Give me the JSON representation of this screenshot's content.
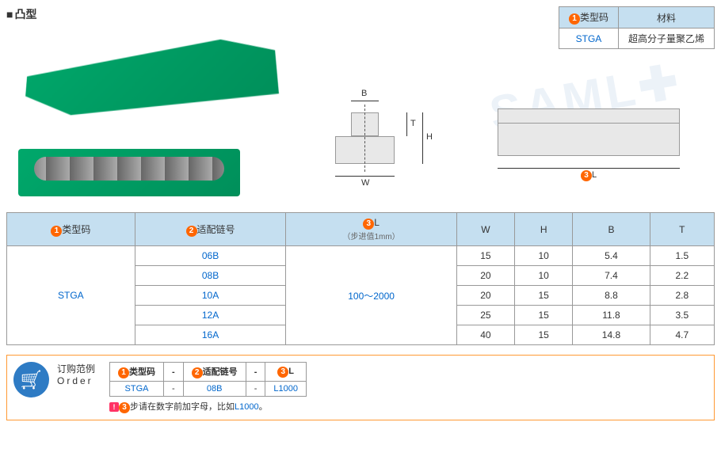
{
  "title": "凸型",
  "material_table": {
    "headers": [
      "类型码",
      "材料"
    ],
    "row": [
      "STGA",
      "超高分子量聚乙烯"
    ]
  },
  "diagram": {
    "labels": {
      "B": "B",
      "W": "W",
      "T": "T",
      "H": "H",
      "L": "L"
    }
  },
  "main_table": {
    "headers": [
      "类型码",
      "适配链号",
      "L",
      "W",
      "H",
      "B",
      "T"
    ],
    "l_subtext": "（步进值1mm）",
    "type_code": "STGA",
    "l_range": "100～2000",
    "rows": [
      {
        "chain": "06B",
        "w": "15",
        "h": "10",
        "b": "5.4",
        "t": "1.5"
      },
      {
        "chain": "08B",
        "w": "20",
        "h": "10",
        "b": "7.4",
        "t": "2.2"
      },
      {
        "chain": "10A",
        "w": "20",
        "h": "15",
        "b": "8.8",
        "t": "2.8"
      },
      {
        "chain": "12A",
        "w": "25",
        "h": "15",
        "b": "11.8",
        "t": "3.5"
      },
      {
        "chain": "16A",
        "w": "40",
        "h": "15",
        "b": "14.8",
        "t": "4.7"
      }
    ]
  },
  "order": {
    "label_cn": "订购范例",
    "label_en": "Order",
    "headers": [
      "类型码",
      "-",
      "适配链号",
      "-",
      "L"
    ],
    "values": [
      "STGA",
      "-",
      "08B",
      "-",
      "L1000"
    ],
    "note_prefix": "步请在数字前加字母，比如",
    "note_example": "L1000",
    "note_suffix": "。"
  },
  "markers": {
    "m1": "1",
    "m2": "2",
    "m3": "3"
  }
}
